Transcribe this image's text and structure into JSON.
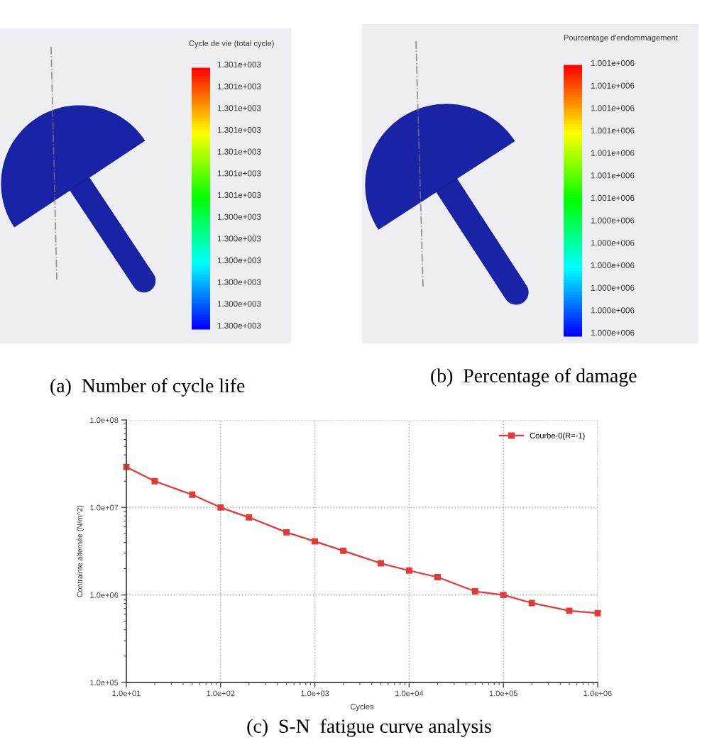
{
  "chart_data": [
    {
      "type": "other",
      "title": "(a)  Number of cycle life",
      "clabel": "Cycle de vie (total cycle)",
      "annotations": [
        "1.301e+003",
        "1.301e+003",
        "1.301e+003",
        "1.301e+003",
        "1.301e+003",
        "1.301e+003",
        "1.301e+003",
        "1.300e+003",
        "1.300e+003",
        "1.300e+003",
        "1.300e+003",
        "1.300e+003",
        "1.300e+003"
      ]
    },
    {
      "type": "other",
      "title": "(b)  Percentage of damage",
      "clabel": "Pourcentage d'endommagement",
      "annotations": [
        "1.001e+006",
        "1.001e+006",
        "1.001e+006",
        "1.001e+006",
        "1.001e+006",
        "1.001e+006",
        "1.001e+006",
        "1.000e+006",
        "1.000e+006",
        "1.000e+006",
        "1.000e+006",
        "1.000e+006",
        "1.000e+006"
      ]
    },
    {
      "type": "line",
      "title": "(c)  S-N  fatigue curve analysis",
      "xlabel": "Cycles",
      "ylabel": "Contrainte alternée (N/m^2)",
      "x": [
        10,
        20,
        50,
        100,
        200,
        500,
        1000,
        2000,
        5000,
        10000,
        20000,
        50000,
        100000,
        200000,
        500000,
        1000000
      ],
      "series": [
        {
          "name": "Courbe-0(R=-1)",
          "color": "#e53935",
          "values": [
            29000000,
            20000000,
            14000000,
            10000000,
            7700000,
            5200000,
            4100000,
            3200000,
            2300000,
            1900000,
            1600000,
            1100000,
            1000000,
            810000,
            660000,
            620000
          ]
        }
      ],
      "log": "xy",
      "xlim": [
        10,
        1000000
      ],
      "ylim": [
        100000,
        100000000
      ],
      "xticks": [
        {
          "value": 10,
          "label": "1.0e+01"
        },
        {
          "value": 100,
          "label": "1.0e+02"
        },
        {
          "value": 1000,
          "label": "1.0e+03"
        },
        {
          "value": 10000,
          "label": "1.0e+04"
        },
        {
          "value": 100000,
          "label": "1.0e+05"
        },
        {
          "value": 1000000,
          "label": "1.0e+06"
        }
      ],
      "yticks": [
        {
          "value": 100000,
          "label": "1.0e+05"
        },
        {
          "value": 1000000,
          "label": "1.0e+06"
        },
        {
          "value": 10000000,
          "label": "1.0e+07"
        },
        {
          "value": 100000000,
          "label": "1.0e+08"
        }
      ],
      "grid": true,
      "legend": "top right",
      "marker": "square",
      "line_style": "solid"
    }
  ]
}
